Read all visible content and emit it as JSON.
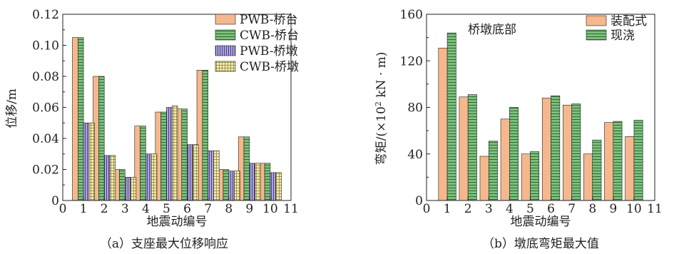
{
  "chart_data": [
    {
      "type": "bar",
      "xlabel": "地震动编号",
      "ylabel": "位移/m",
      "caption": "（a）支座最大位移响应",
      "x_ticks": [
        0,
        1,
        2,
        3,
        4,
        5,
        6,
        7,
        8,
        9,
        10,
        11
      ],
      "xlim": [
        0,
        11
      ],
      "y_ticks": [
        "0",
        "0.02",
        "0.04",
        "0.06",
        "0.08",
        "0.10",
        "0.12"
      ],
      "ylim": [
        0,
        0.12
      ],
      "legend_position": "top-right",
      "categories": [
        1,
        2,
        3,
        4,
        5,
        6,
        7,
        8,
        9,
        10
      ],
      "series": [
        {
          "name": "PWB-桥台",
          "color": "#f5b88d",
          "pattern": "solid",
          "values": [
            0.105,
            0.08,
            0.02,
            0.048,
            0.057,
            0.059,
            0.084,
            0.02,
            0.041,
            0.024
          ]
        },
        {
          "name": "CWB-桥台",
          "color": "#7cc07e",
          "pattern": "hlines",
          "values": [
            0.105,
            0.08,
            0.02,
            0.048,
            0.057,
            0.059,
            0.084,
            0.02,
            0.041,
            0.024
          ]
        },
        {
          "name": "PWB-桥墩",
          "color": "#a69bd6",
          "pattern": "vlines",
          "values": [
            0.05,
            0.029,
            0.015,
            0.03,
            0.06,
            0.036,
            0.032,
            0.019,
            0.024,
            0.018
          ]
        },
        {
          "name": "CWB-桥墩",
          "color": "#f1e9a3",
          "pattern": "grid",
          "values": [
            0.05,
            0.029,
            0.015,
            0.03,
            0.061,
            0.036,
            0.032,
            0.019,
            0.024,
            0.018
          ]
        }
      ]
    },
    {
      "type": "bar",
      "annotation": "桥墩底部",
      "xlabel": "地震动编号",
      "ylabel": "弯矩/(×10² kN·m)",
      "ylabel_parts": {
        "pre": "弯矩/(×10",
        "sup": "2",
        "post": " kN · m)"
      },
      "caption": "（b）墩底弯矩最大值",
      "x_ticks": [
        0,
        1,
        2,
        3,
        4,
        5,
        6,
        7,
        8,
        9,
        10,
        11
      ],
      "xlim": [
        0,
        11
      ],
      "y_ticks": [
        "0",
        "40",
        "80",
        "120",
        "160"
      ],
      "ylim": [
        0,
        160
      ],
      "legend_position": "top-right",
      "categories": [
        1,
        2,
        3,
        4,
        5,
        6,
        7,
        8,
        9,
        10
      ],
      "series": [
        {
          "name": "装配式",
          "color": "#f5b88d",
          "pattern": "solid",
          "values": [
            131,
            89,
            38,
            70,
            40,
            88,
            82,
            40,
            67,
            55
          ]
        },
        {
          "name": "现浇",
          "color": "#7cc07e",
          "pattern": "hlines",
          "values": [
            144,
            91,
            51,
            80,
            42,
            90,
            83,
            52,
            68,
            69
          ]
        }
      ]
    }
  ]
}
